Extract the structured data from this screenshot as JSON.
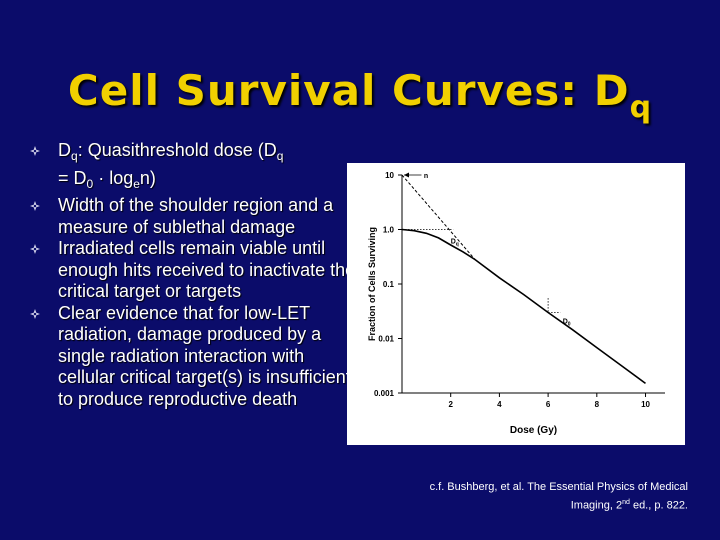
{
  "slide": {
    "title_main": "Cell Survival Curves: D",
    "title_sub": "q"
  },
  "bullets": [
    {
      "text": "D_q: Quasithreshold dose (D_q = D_0 · log_e n)"
    },
    {
      "text": "Width of the shoulder region and a measure of sublethal damage"
    },
    {
      "text": "Irradiated cells remain viable until enough hits received to inactivate the critical target or targets"
    },
    {
      "text": "Clear evidence that for low-LET radiation, damage produced by a single radiation interaction with cellular critical target(s) is insufficient to produce reproductive death"
    }
  ],
  "bullet_parts": {
    "b1_d": "D",
    "b1_q": "q",
    "b1_mid": ": Quasithreshold dose       (D",
    "b1_q2": "q",
    "b1_eq": " = D",
    "b1_zero": "0",
    "b1_log": " · log",
    "b1_e": "e",
    "b1_n": "n)"
  },
  "bullet_icon": "fleur-diamond-icon",
  "citation": {
    "line1": "c.f. Bushberg, et al. The Essential Physics of Medical",
    "line2_pre": "Imaging, 2",
    "line2_sup": "nd",
    "line2_post": " ed., p. 822."
  },
  "colors": {
    "background": "#0b0c6a",
    "title": "#f1d000",
    "text": "#ffffff",
    "plot_line": "#000000"
  },
  "chart_data": {
    "type": "line",
    "title": "",
    "xlabel": "Dose (Gy)",
    "ylabel": "Fraction of Cells Surviving",
    "yscale": "log",
    "xlim": [
      0,
      10.8
    ],
    "ylim": [
      0.001,
      10
    ],
    "x_ticks": [
      2,
      4,
      6,
      8,
      10
    ],
    "y_ticks": [
      10,
      1.0,
      0.1,
      0.01,
      0.001
    ],
    "y_tick_labels": [
      "10",
      "1.0",
      "0.1",
      "0.01",
      "0.001"
    ],
    "series": [
      {
        "x": [
          0,
          0.5,
          1,
          1.5,
          2,
          2.5,
          3,
          4,
          5,
          6,
          7,
          8,
          9,
          10
        ],
        "y": [
          1.0,
          0.95,
          0.85,
          0.7,
          0.52,
          0.39,
          0.28,
          0.13,
          0.064,
          0.03,
          0.0145,
          0.0068,
          0.0032,
          0.0015
        ],
        "style": "solid"
      },
      {
        "x": [
          0,
          3
        ],
        "y": [
          10,
          0.28
        ],
        "style": "dashed"
      }
    ],
    "annotations": [
      {
        "label": "n",
        "x": 0.9,
        "y": 10
      },
      {
        "label": "D",
        "sub": "q",
        "x": 2.0,
        "y": 1.0
      },
      {
        "label": "D",
        "sub": "0",
        "x": 6.6,
        "y": 0.034
      }
    ]
  }
}
